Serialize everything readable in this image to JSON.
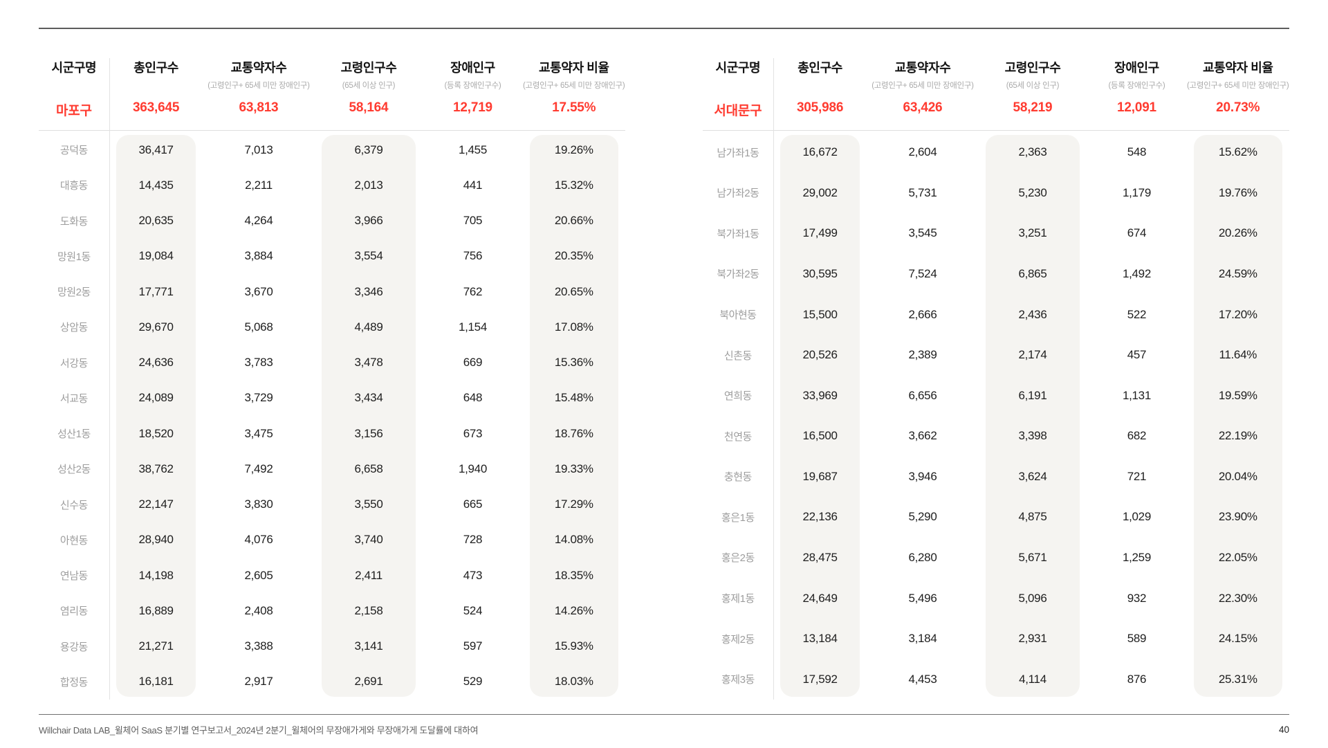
{
  "page": {
    "footer": "Willchair Data LAB_윌체어 SaaS 분기별 연구보고서_2024년 2분기_윌체어의 무장애가게와 무장애가게 도달률에 대하여",
    "page_number": "40"
  },
  "colors": {
    "accent_red": "#FF3B30",
    "pill_background": "#F5F4F1"
  },
  "columns": {
    "name": "시군구명",
    "total": "총인구수",
    "weak": "교통약자수",
    "weak_sub": "(고령인구+ 65세 미만 장애인구)",
    "elderly": "고령인구수",
    "elderly_sub": "(65세 이상 인구)",
    "disabled": "장애인구",
    "disabled_sub": "(등록 장애인구수)",
    "ratio": "교통약자 비율",
    "ratio_sub": "(고령인구+ 65세 미만 장애인구)"
  },
  "tables": [
    {
      "district": "마포구",
      "summary": {
        "total": "363,645",
        "weak": "63,813",
        "elderly": "58,164",
        "disabled": "12,719",
        "ratio": "17.55%"
      },
      "rows": [
        [
          "공덕동",
          "36,417",
          "7,013",
          "6,379",
          "1,455",
          "19.26%"
        ],
        [
          "대흥동",
          "14,435",
          "2,211",
          "2,013",
          "441",
          "15.32%"
        ],
        [
          "도화동",
          "20,635",
          "4,264",
          "3,966",
          "705",
          "20.66%"
        ],
        [
          "망원1동",
          "19,084",
          "3,884",
          "3,554",
          "756",
          "20.35%"
        ],
        [
          "망원2동",
          "17,771",
          "3,670",
          "3,346",
          "762",
          "20.65%"
        ],
        [
          "상암동",
          "29,670",
          "5,068",
          "4,489",
          "1,154",
          "17.08%"
        ],
        [
          "서강동",
          "24,636",
          "3,783",
          "3,478",
          "669",
          "15.36%"
        ],
        [
          "서교동",
          "24,089",
          "3,729",
          "3,434",
          "648",
          "15.48%"
        ],
        [
          "성산1동",
          "18,520",
          "3,475",
          "3,156",
          "673",
          "18.76%"
        ],
        [
          "성산2동",
          "38,762",
          "7,492",
          "6,658",
          "1,940",
          "19.33%"
        ],
        [
          "신수동",
          "22,147",
          "3,830",
          "3,550",
          "665",
          "17.29%"
        ],
        [
          "아현동",
          "28,940",
          "4,076",
          "3,740",
          "728",
          "14.08%"
        ],
        [
          "연남동",
          "14,198",
          "2,605",
          "2,411",
          "473",
          "18.35%"
        ],
        [
          "염리동",
          "16,889",
          "2,408",
          "2,158",
          "524",
          "14.26%"
        ],
        [
          "용강동",
          "21,271",
          "3,388",
          "3,141",
          "597",
          "15.93%"
        ],
        [
          "합정동",
          "16,181",
          "2,917",
          "2,691",
          "529",
          "18.03%"
        ]
      ]
    },
    {
      "district": "서대문구",
      "summary": {
        "total": "305,986",
        "weak": "63,426",
        "elderly": "58,219",
        "disabled": "12,091",
        "ratio": "20.73%"
      },
      "rows": [
        [
          "남가좌1동",
          "16,672",
          "2,604",
          "2,363",
          "548",
          "15.62%"
        ],
        [
          "남가좌2동",
          "29,002",
          "5,731",
          "5,230",
          "1,179",
          "19.76%"
        ],
        [
          "북가좌1동",
          "17,499",
          "3,545",
          "3,251",
          "674",
          "20.26%"
        ],
        [
          "북가좌2동",
          "30,595",
          "7,524",
          "6,865",
          "1,492",
          "24.59%"
        ],
        [
          "북아현동",
          "15,500",
          "2,666",
          "2,436",
          "522",
          "17.20%"
        ],
        [
          "신촌동",
          "20,526",
          "2,389",
          "2,174",
          "457",
          "11.64%"
        ],
        [
          "연희동",
          "33,969",
          "6,656",
          "6,191",
          "1,131",
          "19.59%"
        ],
        [
          "천연동",
          "16,500",
          "3,662",
          "3,398",
          "682",
          "22.19%"
        ],
        [
          "충현동",
          "19,687",
          "3,946",
          "3,624",
          "721",
          "20.04%"
        ],
        [
          "홍은1동",
          "22,136",
          "5,290",
          "4,875",
          "1,029",
          "23.90%"
        ],
        [
          "홍은2동",
          "28,475",
          "6,280",
          "5,671",
          "1,259",
          "22.05%"
        ],
        [
          "홍제1동",
          "24,649",
          "5,496",
          "5,096",
          "932",
          "22.30%"
        ],
        [
          "홍제2동",
          "13,184",
          "3,184",
          "2,931",
          "589",
          "24.15%"
        ],
        [
          "홍제3동",
          "17,592",
          "4,453",
          "4,114",
          "876",
          "25.31%"
        ]
      ]
    }
  ]
}
